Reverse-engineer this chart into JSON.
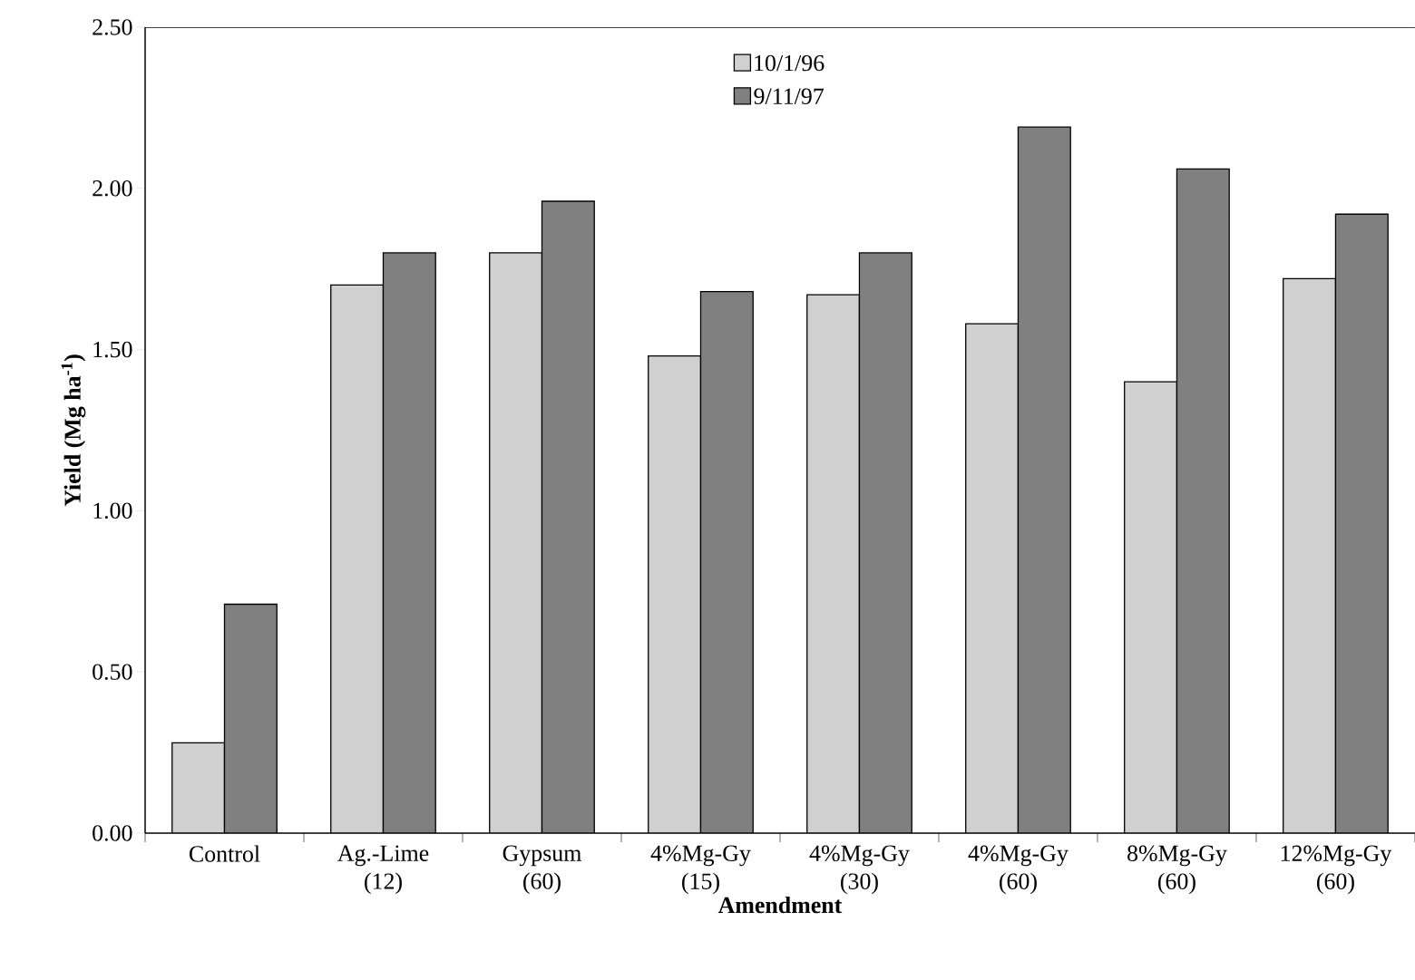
{
  "chart_data": {
    "type": "bar",
    "xlabel": "Amendment",
    "ylabel": "Yield (Mg ha$^{-1}$)",
    "categories": [
      "Control",
      "Ag.-Lime (12)",
      "Gypsum (60)",
      "4%Mg-Gy (15)",
      "4%Mg-Gy (30)",
      "4%Mg-Gy (60)",
      "8%Mg-Gy (60)",
      "12%Mg-Gy (60)"
    ],
    "series": [
      {
        "name": "10/1/96",
        "color": "#d0d0d0",
        "values": [
          0.28,
          1.7,
          1.8,
          1.48,
          1.67,
          1.58,
          1.4,
          1.72
        ]
      },
      {
        "name": "9/11/97",
        "color": "#808080",
        "values": [
          0.71,
          1.8,
          1.96,
          1.68,
          1.8,
          2.19,
          2.06,
          1.92
        ]
      }
    ],
    "ylim": [
      0,
      2.5
    ],
    "yticks": [
      {
        "value": 0,
        "label": "0.00"
      },
      {
        "value": 0.5,
        "label": "0.50"
      },
      {
        "value": 1,
        "label": "1.00"
      },
      {
        "value": 1.5,
        "label": "1.50"
      },
      {
        "value": 2,
        "label": "2.00"
      },
      {
        "value": 2.5,
        "label": "2.50"
      }
    ],
    "legend": "top",
    "grid": false
  }
}
